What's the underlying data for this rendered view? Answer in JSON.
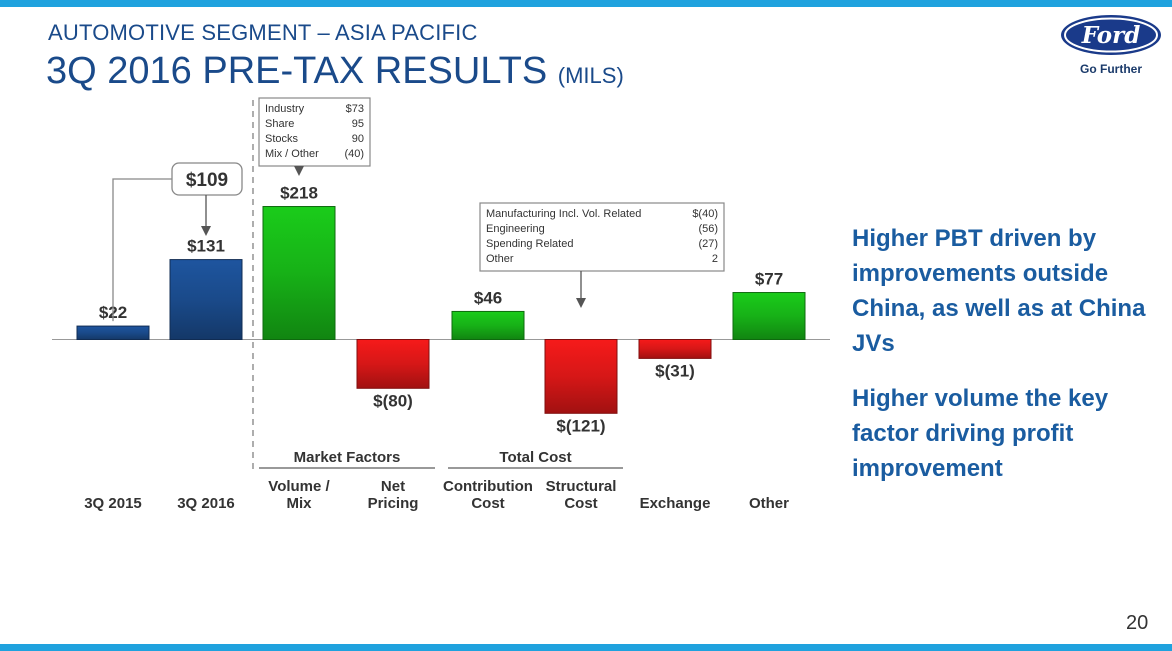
{
  "header": {
    "subtitle": "AUTOMOTIVE SEGMENT – ASIA PACIFIC",
    "title": "3Q 2016 PRE-TAX RESULTS",
    "title_unit": "(MILS)"
  },
  "logo": {
    "brand": "Ford",
    "tagline": "Go Further"
  },
  "page_number": "20",
  "right_text": [
    "Higher PBT driven by improvements outside China, as well as at China JVs",
    "Higher volume the key factor driving profit improvement"
  ],
  "chart_data": {
    "type": "bar",
    "subtype": "waterfall",
    "categories": [
      "3Q 2015",
      "3Q 2016",
      "Volume / Mix",
      "Net Pricing",
      "Contribution Cost",
      "Structural Cost",
      "Exchange",
      "Other"
    ],
    "values": [
      22,
      131,
      218,
      -80,
      46,
      -121,
      -31,
      77
    ],
    "value_labels": [
      "$22",
      "$131",
      "$218",
      "$(80)",
      "$46",
      "$(121)",
      "$(31)",
      "$77"
    ],
    "category_lines": [
      [
        "3Q 2015"
      ],
      [
        "3Q 2016"
      ],
      [
        "Volume /",
        "Mix"
      ],
      [
        "Net",
        "Pricing"
      ],
      [
        "Contribution",
        "Cost"
      ],
      [
        "Structural",
        "Cost"
      ],
      [
        "Exchange"
      ],
      [
        "Other"
      ]
    ],
    "bar_colors": [
      "#1a4a8a",
      "#1a4a8a",
      "#17b117",
      "#d61717",
      "#17b117",
      "#d61717",
      "#d61717",
      "#17b117"
    ],
    "groups": [
      {
        "label": "Market Factors",
        "from": 2,
        "to": 3
      },
      {
        "label": "Total Cost",
        "from": 4,
        "to": 5
      }
    ],
    "change_callout": {
      "label": "$109",
      "from": 0,
      "to": 1
    },
    "breakdowns": [
      {
        "target": 2,
        "rows": [
          [
            "Industry",
            "$73"
          ],
          [
            "Share",
            "95"
          ],
          [
            "Stocks",
            "90"
          ],
          [
            "Mix / Other",
            "(40)"
          ]
        ]
      },
      {
        "target": 5,
        "rows": [
          [
            "Manufacturing Incl. Vol. Related",
            "$(40)"
          ],
          [
            "Engineering",
            "(56)"
          ],
          [
            "Spending Related",
            "(27)"
          ],
          [
            "Other",
            "2"
          ]
        ]
      }
    ],
    "colors": {
      "positive": "#17b117",
      "negative": "#d61717",
      "total": "#1a4a8a"
    }
  }
}
